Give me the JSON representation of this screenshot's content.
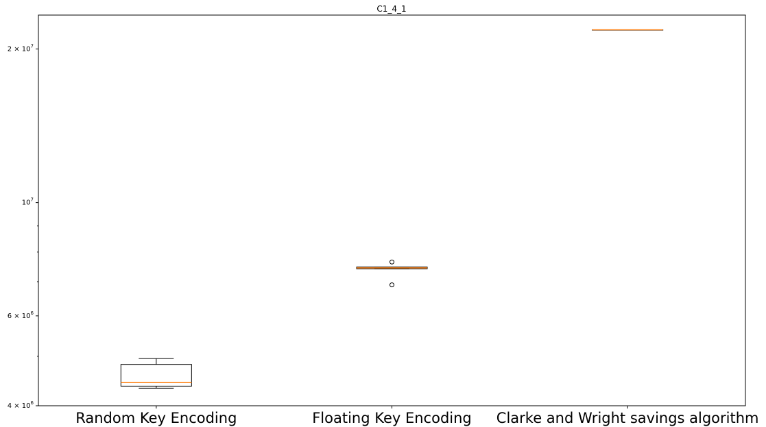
{
  "chart_data": {
    "type": "box",
    "title": "C1_4_1",
    "xlabel": "",
    "ylabel": "",
    "yscale": "log",
    "ylim": [
      4000000,
      23300000
    ],
    "yticks": [
      {
        "value": 4000000,
        "base": "4 × 10",
        "exp": "6"
      },
      {
        "value": 6000000,
        "base": "6 × 10",
        "exp": "6"
      },
      {
        "value": 10000000,
        "base": "10",
        "exp": "7"
      },
      {
        "value": 20000000,
        "base": "2 × 10",
        "exp": "7"
      }
    ],
    "categories": [
      "Random Key Encoding",
      "Floating Key Encoding",
      "Clarke and Wright savings algorithm"
    ],
    "boxes": [
      {
        "whisker_low": 4330000,
        "q1": 4370000,
        "median": 4440000,
        "q3": 4820000,
        "whisker_high": 4950000,
        "fliers": []
      },
      {
        "whisker_low": 7420000,
        "q1": 7420000,
        "median": 7450000,
        "q3": 7480000,
        "whisker_high": 7480000,
        "fliers": [
          6900000,
          7650000
        ]
      },
      {
        "whisker_low": 21800000,
        "q1": 21800000,
        "median": 21800000,
        "q3": 21800000,
        "whisker_high": 21800000,
        "fliers": []
      }
    ],
    "colors": {
      "box": "#000000",
      "median": "#ff7f0e",
      "background": "#ffffff"
    },
    "grid": false,
    "legend": "none"
  }
}
